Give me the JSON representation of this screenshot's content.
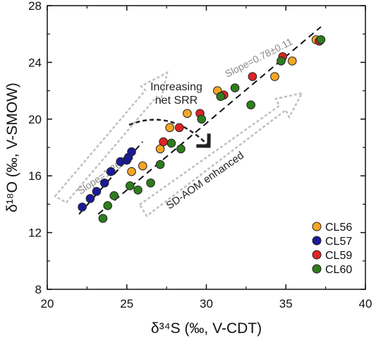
{
  "chart_data": {
    "type": "scatter",
    "xlabel": "δ³⁴S (‰, V-CDT)",
    "ylabel": "δ¹⁸O (‰, V-SMOW)",
    "xlim": [
      20,
      40
    ],
    "ylim": [
      8,
      28
    ],
    "xticks": [
      20,
      25,
      30,
      35,
      40
    ],
    "yticks": [
      8,
      12,
      16,
      20,
      24,
      28
    ],
    "grid": false,
    "legend_position": "bottom-right",
    "annotations": {
      "slope_low": "Slope=1.26",
      "slope_high": "Slope=0.78±0.11",
      "srr_line1": "Increasing",
      "srr_line2": "net SRR",
      "aom": "SD-AOM enhanced"
    },
    "series": [
      {
        "name": "CL56",
        "color": "#f5a623",
        "points": [
          [
            25.3,
            16.3
          ],
          [
            26.0,
            16.7
          ],
          [
            27.1,
            17.9
          ],
          [
            27.7,
            19.4
          ],
          [
            28.8,
            20.4
          ],
          [
            30.7,
            22.0
          ],
          [
            34.3,
            23.0
          ],
          [
            35.4,
            24.1
          ],
          [
            36.9,
            25.6
          ]
        ]
      },
      {
        "name": "CL57",
        "color": "#1a1a9a",
        "points": [
          [
            22.2,
            13.8
          ],
          [
            22.7,
            14.4
          ],
          [
            23.1,
            14.9
          ],
          [
            23.6,
            15.5
          ],
          [
            24.0,
            16.3
          ],
          [
            24.6,
            17.0
          ],
          [
            25.0,
            17.1
          ],
          [
            25.1,
            17.3
          ],
          [
            25.3,
            17.7
          ]
        ]
      },
      {
        "name": "CL59",
        "color": "#e02424",
        "points": [
          [
            27.3,
            18.4
          ],
          [
            28.3,
            19.4
          ],
          [
            29.6,
            20.4
          ],
          [
            31.1,
            21.7
          ],
          [
            32.9,
            23.0
          ],
          [
            34.8,
            24.4
          ],
          [
            37.1,
            25.5
          ]
        ]
      },
      {
        "name": "CL60",
        "color": "#2e7d1e",
        "points": [
          [
            23.5,
            13.0
          ],
          [
            23.8,
            13.9
          ],
          [
            24.2,
            14.6
          ],
          [
            25.2,
            15.3
          ],
          [
            25.7,
            15.0
          ],
          [
            26.5,
            15.5
          ],
          [
            27.1,
            16.8
          ],
          [
            27.8,
            18.3
          ],
          [
            28.4,
            17.9
          ],
          [
            29.7,
            20.0
          ],
          [
            30.9,
            21.6
          ],
          [
            31.8,
            22.2
          ],
          [
            32.8,
            21.0
          ],
          [
            34.7,
            24.1
          ],
          [
            37.2,
            25.6
          ]
        ]
      }
    ]
  }
}
